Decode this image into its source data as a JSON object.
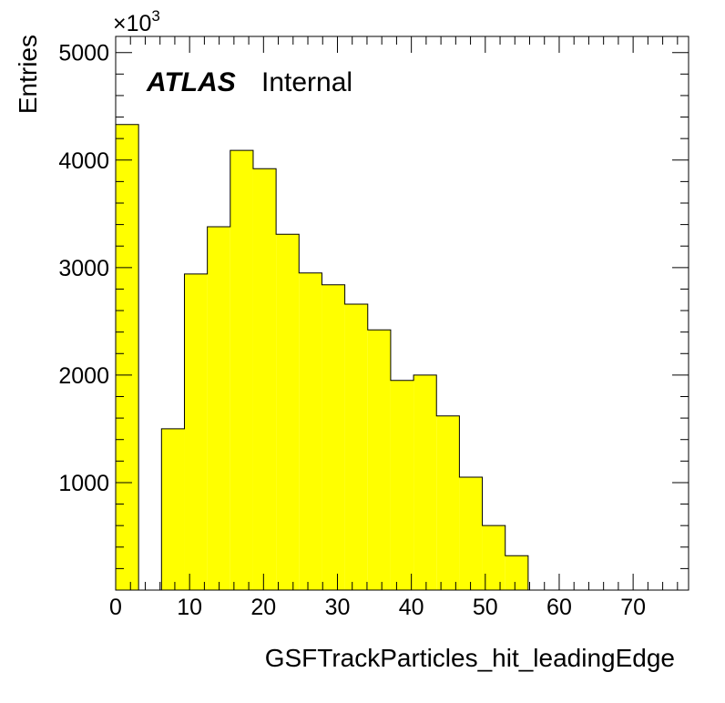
{
  "chart_data": {
    "type": "bar",
    "histogram": true,
    "xlabel": "GSFTrackParticles_hit_leadingEdge",
    "ylabel": "Entries",
    "y_multiplier": "×10",
    "y_multiplier_exp": "3",
    "xlim": [
      0,
      77.5
    ],
    "ylim": [
      0,
      5150
    ],
    "x_ticks": [
      0,
      10,
      20,
      30,
      40,
      50,
      60,
      70
    ],
    "y_ticks": [
      1000,
      2000,
      3000,
      4000,
      5000
    ],
    "grid": false,
    "fill_color": "#ffff00",
    "line_color": "#000000",
    "bins": [
      {
        "low": 0.0,
        "high": 3.1,
        "value": 4330
      },
      {
        "low": 3.1,
        "high": 6.2,
        "value": 0
      },
      {
        "low": 6.2,
        "high": 9.3,
        "value": 1500
      },
      {
        "low": 9.3,
        "high": 12.4,
        "value": 2940
      },
      {
        "low": 12.4,
        "high": 15.5,
        "value": 3380
      },
      {
        "low": 15.5,
        "high": 18.6,
        "value": 4090
      },
      {
        "low": 18.6,
        "high": 21.7,
        "value": 3920
      },
      {
        "low": 21.7,
        "high": 24.8,
        "value": 3310
      },
      {
        "low": 24.8,
        "high": 27.9,
        "value": 2950
      },
      {
        "low": 27.9,
        "high": 31.0,
        "value": 2840
      },
      {
        "low": 31.0,
        "high": 34.1,
        "value": 2660
      },
      {
        "low": 34.1,
        "high": 37.2,
        "value": 2420
      },
      {
        "low": 37.2,
        "high": 40.3,
        "value": 1950
      },
      {
        "low": 40.3,
        "high": 43.4,
        "value": 2000
      },
      {
        "low": 43.4,
        "high": 46.5,
        "value": 1620
      },
      {
        "low": 46.5,
        "high": 49.6,
        "value": 1050
      },
      {
        "low": 49.6,
        "high": 52.7,
        "value": 600
      },
      {
        "low": 52.7,
        "high": 55.8,
        "value": 320
      }
    ]
  },
  "label": {
    "experiment": "ATLAS",
    "status": "Internal"
  }
}
